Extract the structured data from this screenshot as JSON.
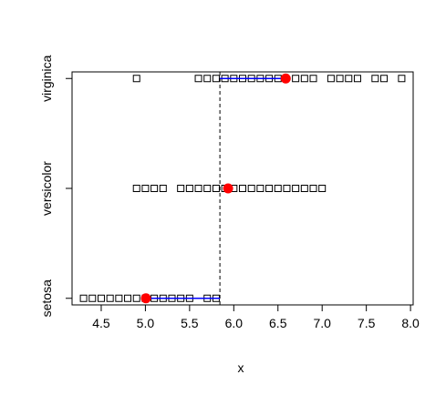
{
  "chart_data": {
    "type": "scatter",
    "title": "",
    "xlabel": "x",
    "ylabel": "",
    "xlim": [
      4.17,
      8.03
    ],
    "ylim": [
      0.94,
      3.06
    ],
    "x_ticks": [
      4.5,
      5.0,
      5.5,
      6.0,
      6.5,
      7.0,
      7.5,
      8.0
    ],
    "x_tick_labels": [
      "4.5",
      "5.0",
      "5.5",
      "6.0",
      "6.5",
      "7.0",
      "7.5",
      "8.0"
    ],
    "y_ticks": [
      1,
      2,
      3
    ],
    "y_tick_labels": [
      "setosa",
      "versicolor",
      "virginica"
    ],
    "grid": false,
    "series": [
      {
        "category": "setosa",
        "y": 1,
        "marker": "open-square",
        "x": [
          4.3,
          4.4,
          4.5,
          4.6,
          4.7,
          4.8,
          4.9,
          5.0,
          5.1,
          5.2,
          5.3,
          5.4,
          5.5,
          5.7,
          5.8
        ]
      },
      {
        "category": "versicolor",
        "y": 2,
        "marker": "open-square",
        "x": [
          4.9,
          5.0,
          5.1,
          5.2,
          5.4,
          5.5,
          5.6,
          5.7,
          5.8,
          5.9,
          6.0,
          6.1,
          6.2,
          6.3,
          6.4,
          6.5,
          6.6,
          6.7,
          6.8,
          6.9,
          7.0
        ]
      },
      {
        "category": "virginica",
        "y": 3,
        "marker": "open-square",
        "x": [
          4.9,
          5.6,
          5.7,
          5.8,
          5.9,
          6.0,
          6.1,
          6.2,
          6.3,
          6.4,
          6.5,
          6.7,
          6.8,
          6.9,
          7.1,
          7.2,
          7.3,
          7.4,
          7.6,
          7.7,
          7.9
        ]
      }
    ],
    "means": [
      {
        "category": "setosa",
        "x": 5.006,
        "y": 1
      },
      {
        "category": "versicolor",
        "x": 5.936,
        "y": 2
      },
      {
        "category": "virginica",
        "x": 6.588,
        "y": 3
      }
    ],
    "blue_segments": [
      {
        "category": "setosa",
        "y": 1,
        "x_start": 5.006,
        "x_end": 5.843
      },
      {
        "category": "virginica",
        "y": 3,
        "x_start": 5.843,
        "x_end": 6.588
      }
    ],
    "reference_line": {
      "x": 5.843,
      "style": "dashed"
    },
    "colors": {
      "points": "#000000",
      "means": "#ff0000",
      "segments": "#0000ff",
      "reference_line": "#000000"
    }
  }
}
